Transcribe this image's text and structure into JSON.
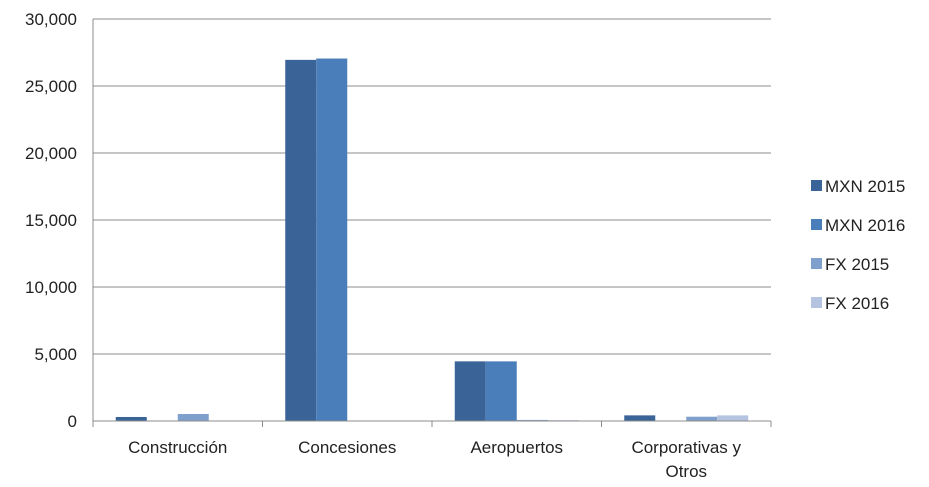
{
  "chart_data": {
    "type": "bar",
    "categories": [
      "Construcción",
      "Concesiones",
      "Aeropuertos",
      "Corporativas y Otros"
    ],
    "category_label_lines": [
      [
        "Construcción"
      ],
      [
        "Concesiones"
      ],
      [
        "Aeropuertos"
      ],
      [
        "Corporativas y",
        "Otros"
      ]
    ],
    "series": [
      {
        "name": "MXN 2015",
        "color": "#3A6398",
        "values": [
          300,
          26950,
          4450,
          420
        ]
      },
      {
        "name": "MXN 2016",
        "color": "#4A7EBB",
        "values": [
          0,
          27050,
          4450,
          0
        ]
      },
      {
        "name": "FX 2015",
        "color": "#7F9FCC",
        "values": [
          520,
          0,
          80,
          320
        ]
      },
      {
        "name": "FX 2016",
        "color": "#B3C3E0",
        "values": [
          0,
          0,
          60,
          420
        ]
      }
    ],
    "ylim": [
      0,
      30000
    ],
    "yticks": [
      0,
      5000,
      10000,
      15000,
      20000,
      25000,
      30000
    ],
    "ytick_labels": [
      "0",
      "5,000",
      "10,000",
      "15,000",
      "20,000",
      "25,000",
      "30,000"
    ],
    "title": "",
    "xlabel": "",
    "ylabel": "",
    "grid": true,
    "legend_position": "right"
  }
}
